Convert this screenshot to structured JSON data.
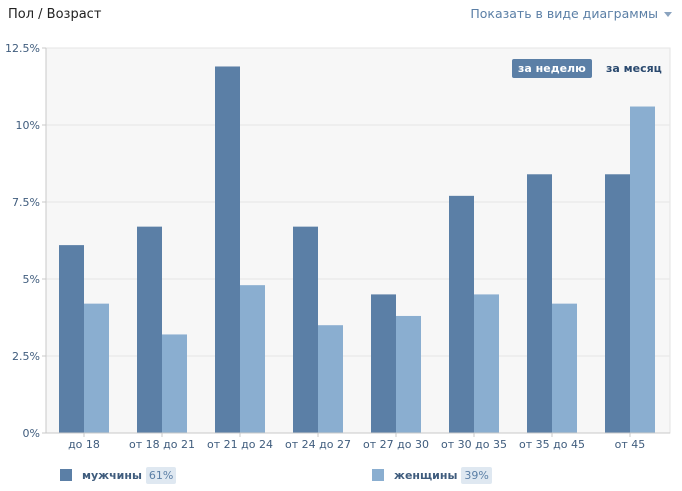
{
  "header": {
    "title": "Пол / Возраст",
    "view_toggle": "Показать в виде диаграммы"
  },
  "period": {
    "week": "за неделю",
    "month": "за месяц"
  },
  "legend": [
    {
      "label": "мужчины",
      "percent": "61%",
      "color": "#5b7fa6"
    },
    {
      "label": "женщины",
      "percent": "39%",
      "color": "#8aaed0"
    }
  ],
  "chart_data": {
    "type": "bar",
    "categories": [
      "до 18",
      "от 18 до 21",
      "от 21 до 24",
      "от 24 до 27",
      "от 27 до 30",
      "от 30 до 35",
      "от 35 до 45",
      "от 45"
    ],
    "series": [
      {
        "name": "мужчины",
        "values": [
          6.1,
          6.7,
          11.9,
          6.7,
          4.5,
          7.7,
          8.4,
          8.4
        ],
        "color": "#5b7fa6"
      },
      {
        "name": "женщины",
        "values": [
          4.2,
          3.2,
          4.8,
          3.5,
          3.8,
          4.5,
          4.2,
          10.6
        ],
        "color": "#8aaed0"
      }
    ],
    "yticks": [
      "0%",
      "2.5%",
      "5%",
      "7.5%",
      "10%",
      "12.5%"
    ],
    "ylim": [
      0,
      12.5
    ],
    "grid": true
  }
}
